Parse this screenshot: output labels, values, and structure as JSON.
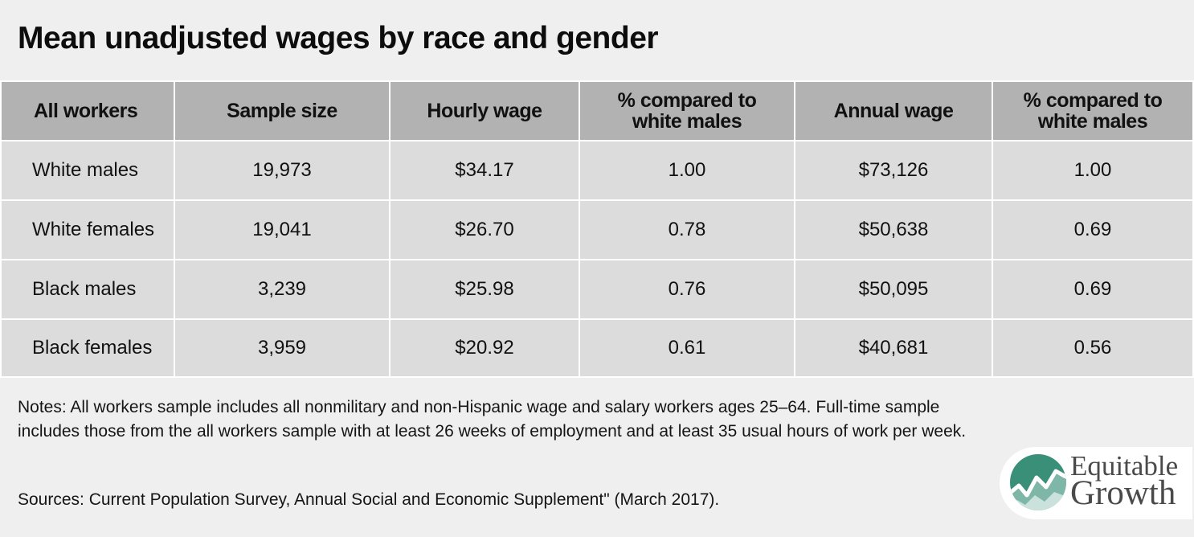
{
  "title": "Mean unadjusted wages by race and gender",
  "chart_data": {
    "type": "table",
    "columns": [
      "All workers",
      "Sample size",
      "Hourly wage",
      "% compared to white males",
      "Annual wage",
      "% compared to white males"
    ],
    "rows": [
      [
        "White males",
        "19,973",
        "$34.17",
        "1.00",
        "$73,126",
        "1.00"
      ],
      [
        "White females",
        "19,041",
        "$26.70",
        "0.78",
        "$50,638",
        "0.69"
      ],
      [
        "Black males",
        "3,239",
        "$25.98",
        "0.76",
        "$50,095",
        "0.69"
      ],
      [
        "Black females",
        "3,959",
        "$20.92",
        "0.61",
        "$40,681",
        "0.56"
      ]
    ]
  },
  "notes": "Notes: All workers sample includes all nonmilitary and non-Hispanic wage and salary workers ages 25–64. Full-time sample includes those from the all workers sample with at least 26 weeks of employment and at least 35 usual hours of work per week.",
  "sources": "Sources: Current Population Survey, Annual Social and Economic Supplement\" (March 2017).",
  "logo": {
    "line1": "Equitable",
    "line2": "Growth",
    "icon": "chart-trend-icon",
    "color": "#3a8f78"
  },
  "colors": {
    "header_bg": "#b2b2b2",
    "cell_bg": "#dcdcdc",
    "page_bg": "#efefef"
  }
}
